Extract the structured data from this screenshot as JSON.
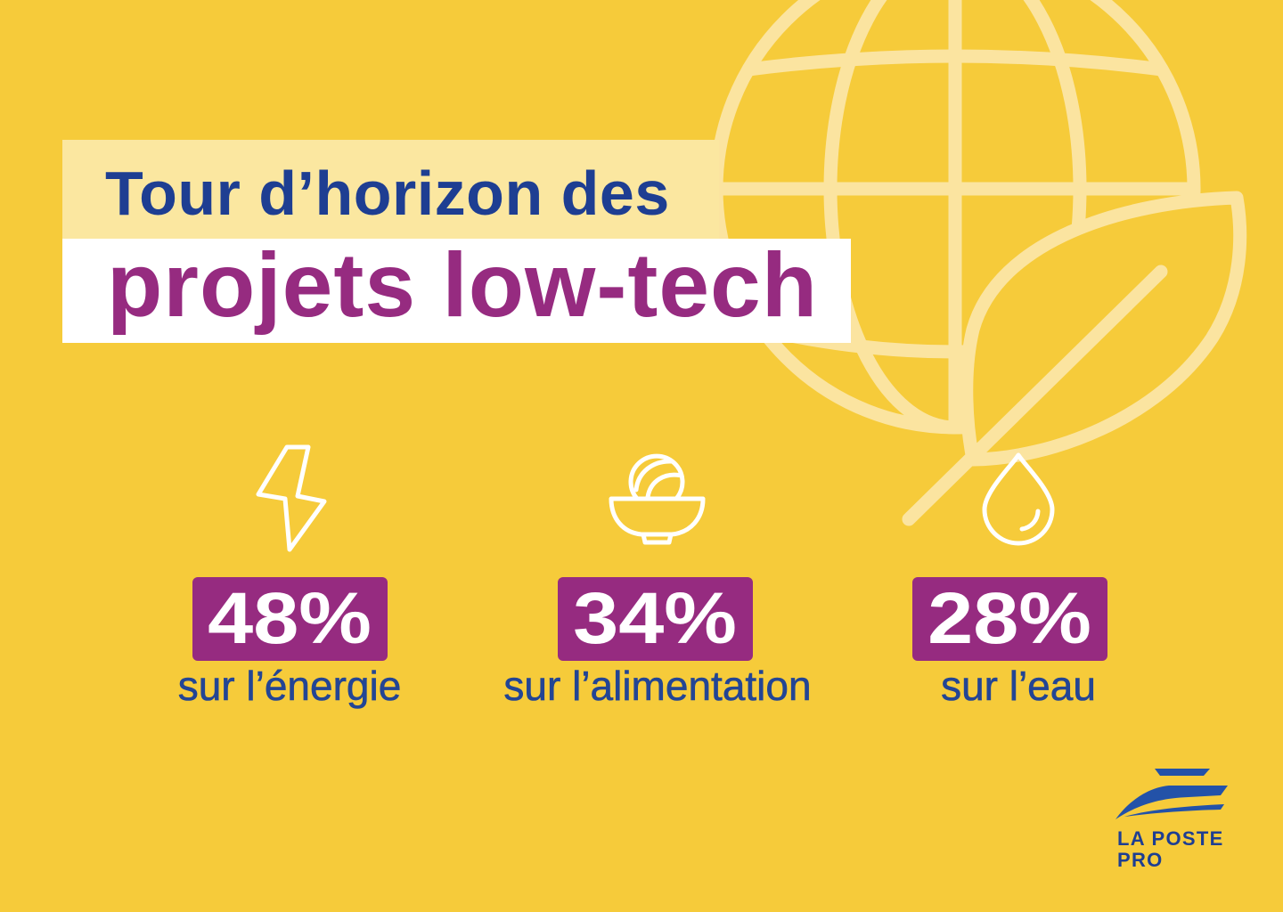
{
  "title": {
    "line1": "Tour d’horizon des",
    "line2": "projets low-tech"
  },
  "stats": [
    {
      "icon": "lightning-icon",
      "value": "48%",
      "label": "sur l’énergie"
    },
    {
      "icon": "bowl-icon",
      "value": "34%",
      "label": "sur l’alimentation"
    },
    {
      "icon": "water-drop-icon",
      "value": "28%",
      "label": "sur l’eau"
    }
  ],
  "logo": {
    "icon": "la-poste-bird-icon",
    "line1": "LA POSTE",
    "line2": "PRO"
  },
  "illustration": {
    "icons": [
      "globe-icon",
      "leaf-icon"
    ]
  },
  "colors": {
    "background": "#F6CB3A",
    "title_band_pale": "#FBE7A0",
    "title_band_white": "#FFFFFF",
    "title_blue": "#1E3E92",
    "accent_purple": "#962B80",
    "label_blue": "#234594",
    "illustration_line": "#FBE4A0",
    "icon_line": "#FFFFFF",
    "logo_blue": "#2352A8"
  }
}
